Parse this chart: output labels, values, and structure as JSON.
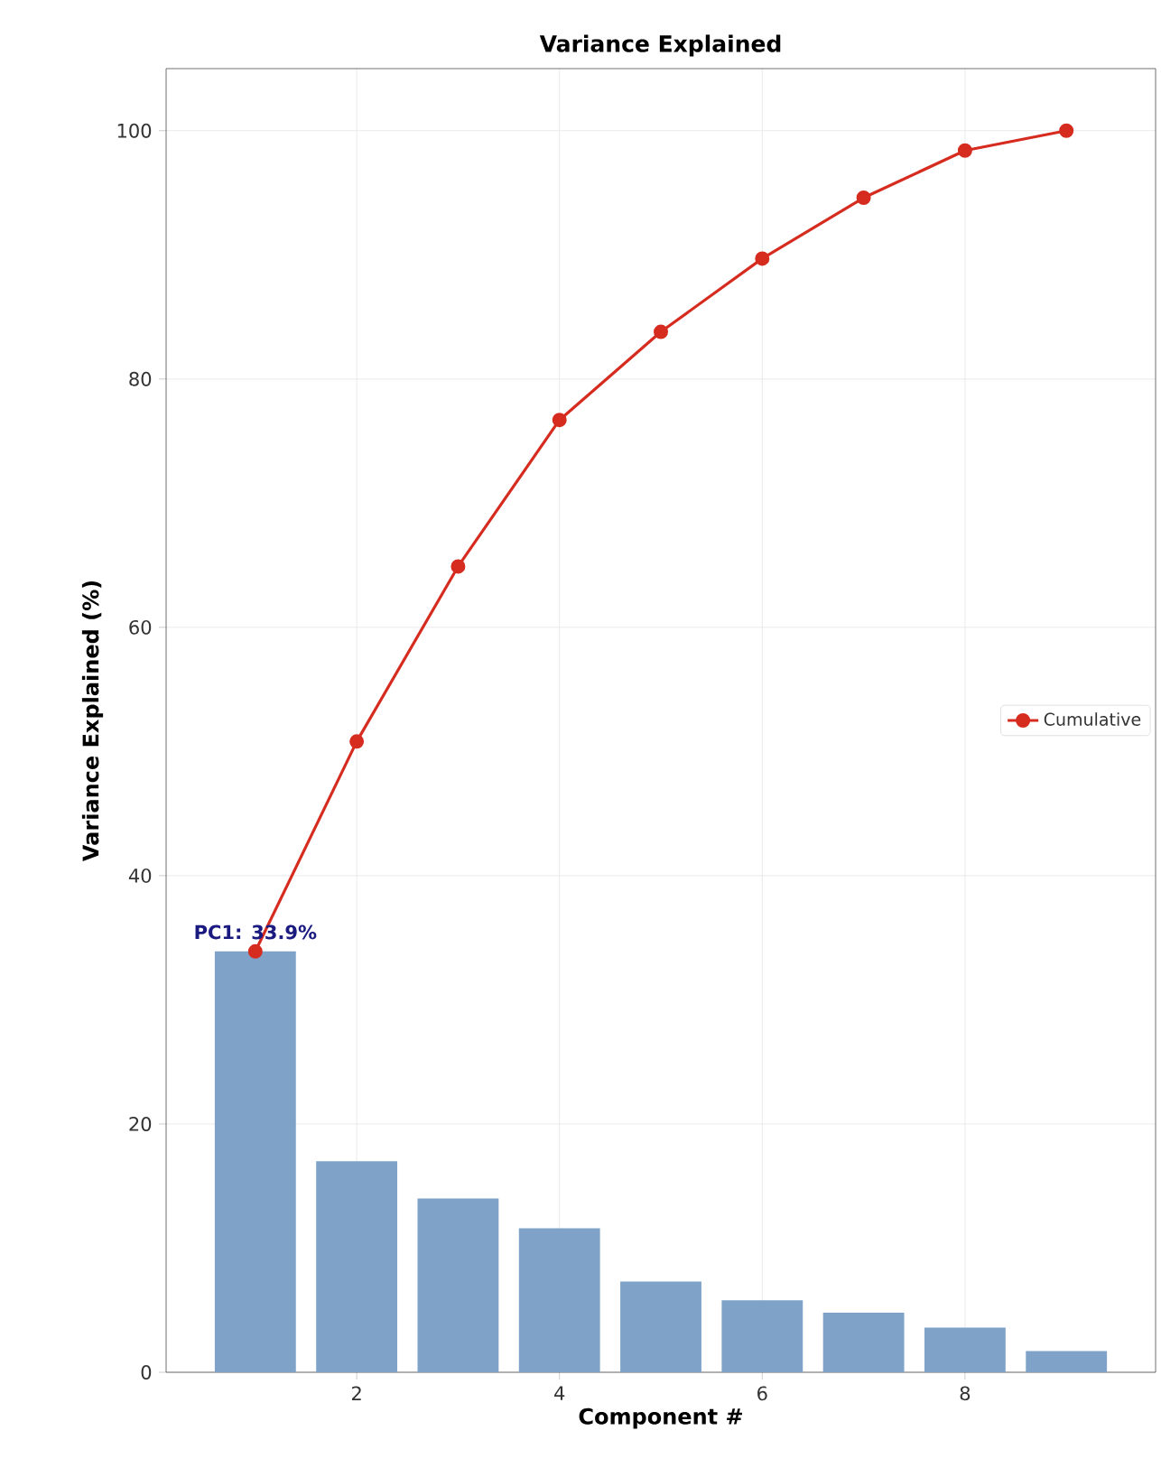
{
  "chart_data": {
    "type": "bar",
    "title": "Variance Explained",
    "xlabel": "Component #",
    "ylabel": "Variance Explained (%)",
    "x": [
      1,
      2,
      3,
      4,
      5,
      6,
      7,
      8,
      9
    ],
    "series": [
      {
        "color": "#7fa3c8",
        "values": [
          33.9,
          17.0,
          14.0,
          11.6,
          7.3,
          5.8,
          4.8,
          3.6,
          1.7
        ]
      },
      {
        "type": "line",
        "name": "Cumulative",
        "color": "#d62c20",
        "marker": "circle",
        "line_style": "solid",
        "values": [
          33.9,
          50.8,
          64.9,
          76.7,
          83.8,
          89.7,
          94.6,
          98.4,
          100
        ]
      }
    ],
    "xlim": [
      0.12,
      9.88
    ],
    "ylim": [
      0,
      105
    ],
    "xticks": [
      2,
      4,
      6,
      8
    ],
    "yticks": [
      0,
      20,
      40,
      60,
      80,
      100
    ],
    "grid": true,
    "legend": "right",
    "annotations": [
      {
        "text": "PC1: 33.9%",
        "x": 1,
        "y": 33.9
      }
    ]
  }
}
